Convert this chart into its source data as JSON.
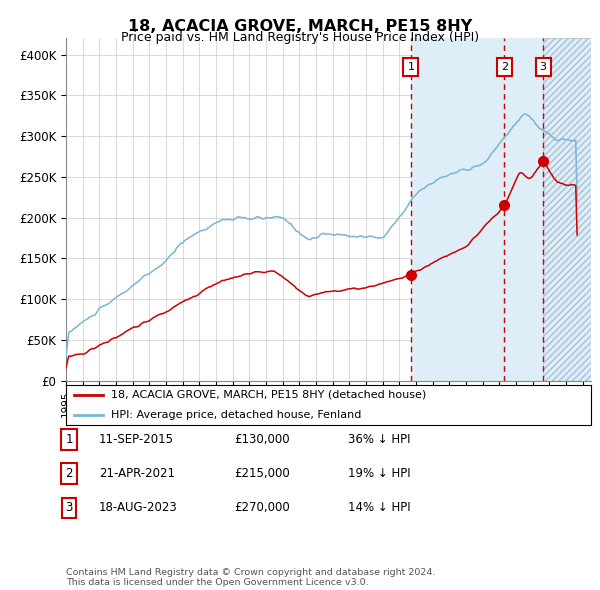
{
  "title": "18, ACACIA GROVE, MARCH, PE15 8HY",
  "subtitle": "Price paid vs. HM Land Registry's House Price Index (HPI)",
  "ylabel_ticks": [
    "£0",
    "£50K",
    "£100K",
    "£150K",
    "£200K",
    "£250K",
    "£300K",
    "£350K",
    "£400K"
  ],
  "ylim": [
    0,
    420000
  ],
  "xlim_start": 1995.0,
  "xlim_end": 2026.5,
  "hpi_color": "#7ab4d8",
  "price_color": "#cc0000",
  "hpi_fill_color": "#ddeef8",
  "hatch_color": "#aabfcf",
  "marker_color": "#cc0000",
  "dashed_line_color": "#cc0000",
  "sale1_x": 2015.69,
  "sale1_y": 130000,
  "sale2_x": 2021.3,
  "sale2_y": 215000,
  "sale3_x": 2023.63,
  "sale3_y": 270000,
  "legend_label1": "18, ACACIA GROVE, MARCH, PE15 8HY (detached house)",
  "legend_label2": "HPI: Average price, detached house, Fenland",
  "table_rows": [
    {
      "num": "1",
      "date": "11-SEP-2015",
      "price": "£130,000",
      "pct": "36% ↓ HPI"
    },
    {
      "num": "2",
      "date": "21-APR-2021",
      "price": "£215,000",
      "pct": "19% ↓ HPI"
    },
    {
      "num": "3",
      "date": "18-AUG-2023",
      "price": "£270,000",
      "pct": "14% ↓ HPI"
    }
  ],
  "footnote1": "Contains HM Land Registry data © Crown copyright and database right 2024.",
  "footnote2": "This data is licensed under the Open Government Licence v3.0.",
  "background_color": "#ffffff",
  "grid_color": "#cccccc"
}
